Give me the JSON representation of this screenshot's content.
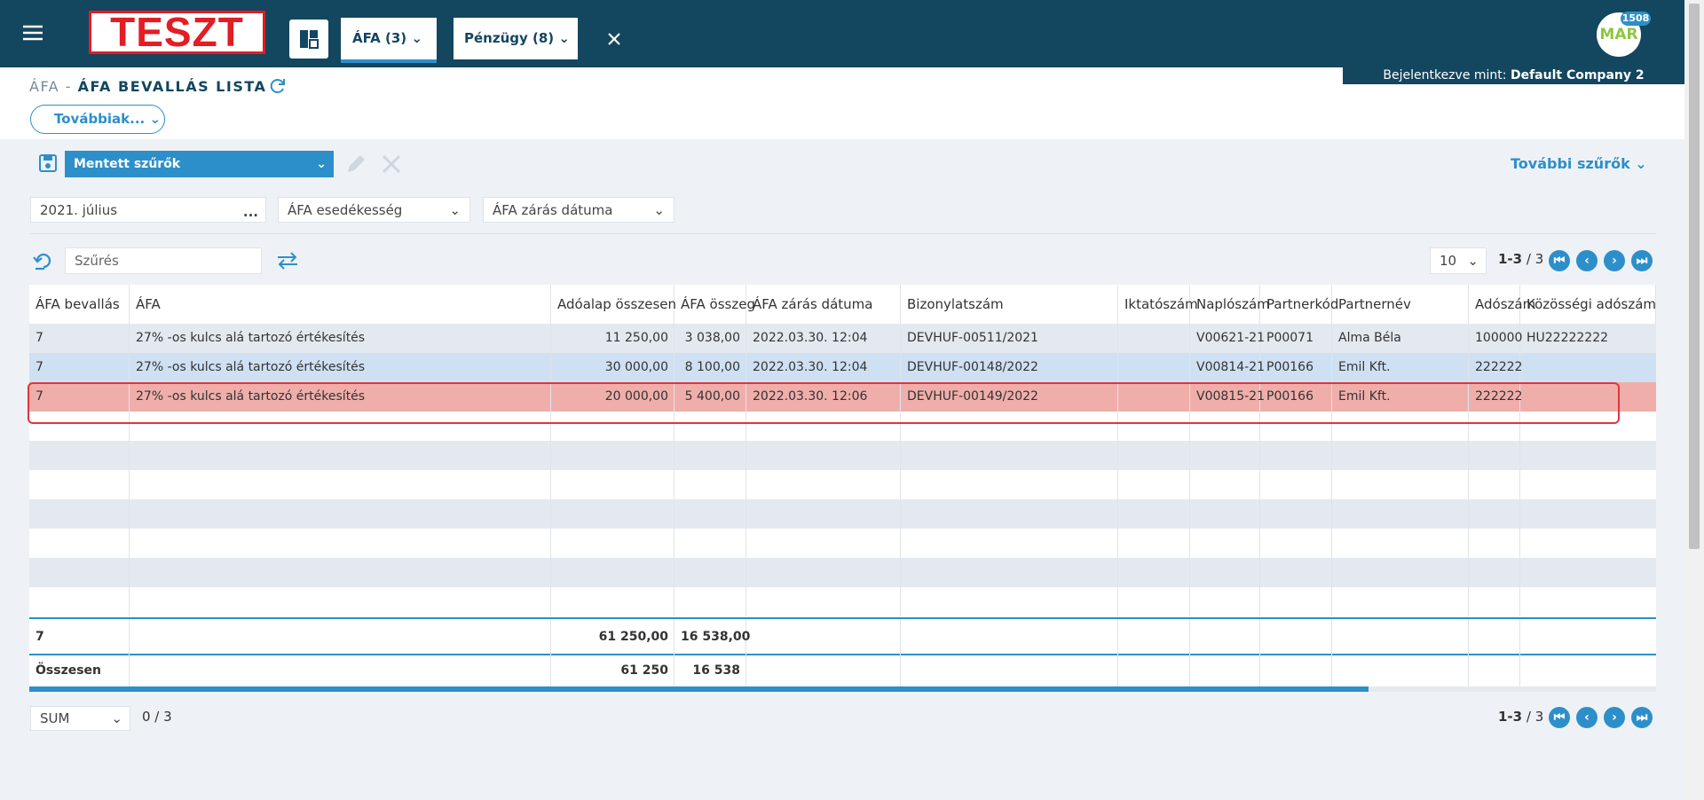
{
  "header": {
    "logo": "TESZT",
    "tabs": [
      "ÁFA (3)",
      "Pénzügy (8)"
    ],
    "avatar": "MAR",
    "badge": "1508",
    "login_label": "Bejelentkezve mint:",
    "login_company": "Default Company 2"
  },
  "breadcrumb": {
    "module": "ÁFA -",
    "page": "ÁFA BEVALLÁS LISTA"
  },
  "more_button": "Továbbiak...",
  "toolbar": {
    "saved_filters": "Mentett szűrők",
    "more_filters": "További szűrők"
  },
  "filters": [
    "2021. július",
    "ÁFA esedékesség",
    "ÁFA zárás dátuma"
  ],
  "search": {
    "placeholder": "Szűrés",
    "page_size": "10",
    "range": "1-3",
    "total": "/ 3"
  },
  "table": {
    "columns": [
      "ÁFA bevallás",
      "ÁFA",
      "Adóalap összesen",
      "ÁFA összeg",
      "ÁFA zárás dátuma",
      "Bizonylatszám",
      "Iktatószám",
      "Naplószám",
      "Partnerkód",
      "Partnernév",
      "Adószám",
      "Közösségi adószám"
    ],
    "rows": [
      [
        "7",
        "27% -os kulcs alá tartozó értékesítés",
        "11 250,00",
        "3 038,00",
        "2022.03.30. 12:04",
        "DEVHUF-00511/2021",
        null,
        "V00621-21",
        "P00071",
        "Alma Béla",
        "100000",
        "HU22222222"
      ],
      [
        "7",
        "27% -os kulcs alá tartozó értékesítés",
        "30 000,00",
        "8 100,00",
        "2022.03.30. 12:04",
        "DEVHUF-00148/2022",
        null,
        "V00814-21",
        "P00166",
        "Emil Kft.",
        "222222",
        null
      ],
      [
        "7",
        "27% -os kulcs alá tartozó értékesítés",
        "20 000,00",
        "5 400,00",
        "2022.03.30. 12:06",
        "DEVHUF-00149/2022",
        null,
        "V00815-21",
        "P00166",
        "Emil Kft.",
        "222222",
        null
      ]
    ],
    "group_total": [
      "7",
      null,
      "61 250,00",
      "16 538,00"
    ],
    "sum_total": [
      "Összesen",
      null,
      "61 250",
      "16 538"
    ]
  },
  "footer": {
    "aggregate": "SUM",
    "selected": "0 / 3",
    "range": "1-3",
    "total": "/ 3"
  }
}
